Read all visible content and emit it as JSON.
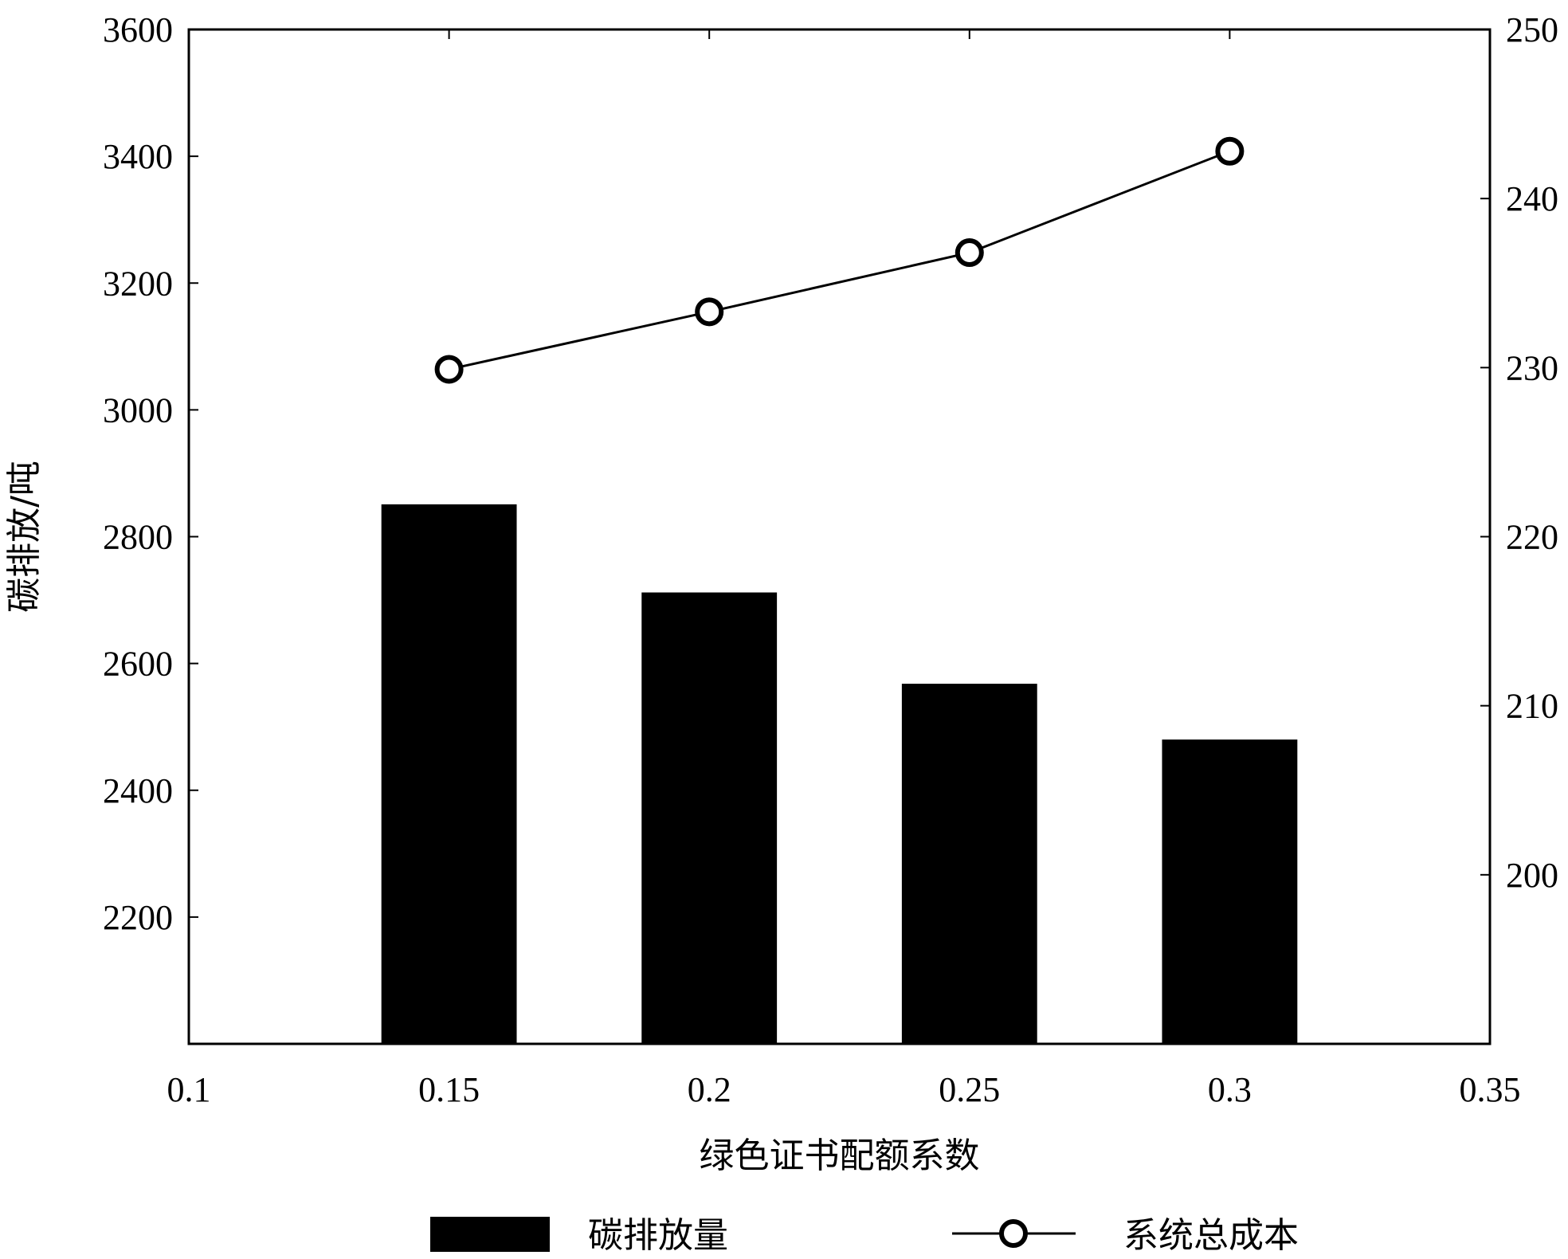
{
  "chart_data": {
    "type": "bar",
    "xlabel": "绿色证书配额系数",
    "ylabel": "碳排放/吨",
    "y2label": "",
    "x_axis": {
      "range": [
        0.1,
        0.35
      ],
      "ticks": [
        0.1,
        0.15,
        0.2,
        0.25,
        0.3,
        0.35
      ],
      "tick_labels": [
        "0.1",
        "0.15",
        "0.2",
        "0.25",
        "0.3",
        "0.35"
      ]
    },
    "y_left": {
      "range": [
        2000,
        3600
      ],
      "ticks": [
        2200,
        2400,
        2600,
        2800,
        3000,
        3200,
        3400,
        3600
      ],
      "tick_labels": [
        "2200",
        "2400",
        "2600",
        "2800",
        "3000",
        "3200",
        "3400",
        "3600"
      ]
    },
    "y_right": {
      "range": [
        190,
        250
      ],
      "ticks": [
        200,
        210,
        220,
        230,
        240,
        250
      ],
      "tick_labels": [
        "200",
        "210",
        "220",
        "230",
        "240",
        "250"
      ]
    },
    "grid": false,
    "legend_position": "bottom",
    "bar_width": 0.026,
    "series": [
      {
        "name": "碳排放量",
        "type": "bar",
        "axis": "left",
        "color": "#000000",
        "x": [
          0.15,
          0.2,
          0.25,
          0.3
        ],
        "values": [
          2851,
          2712,
          2568,
          2480
        ]
      },
      {
        "name": "系统总成本",
        "type": "line",
        "axis": "right",
        "color": "#000000",
        "marker": "open-circle",
        "x": [
          0.15,
          0.2,
          0.25,
          0.3
        ],
        "values": [
          229.9,
          233.3,
          236.8,
          242.8
        ]
      }
    ]
  }
}
